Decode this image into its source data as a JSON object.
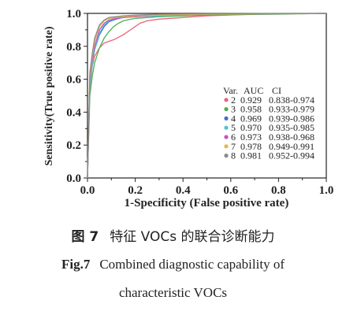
{
  "chart_data": {
    "type": "line",
    "xlabel": "1-Specificity (False positive rate)",
    "ylabel": "Sensitivity(True positive rate)",
    "xlim": [
      0,
      1
    ],
    "ylim": [
      0,
      1
    ],
    "xticks": [
      "0.0",
      "0.2",
      "0.4",
      "0.6",
      "0.8",
      "1.0"
    ],
    "yticks": [
      "0.0",
      "0.2",
      "0.4",
      "0.6",
      "0.8",
      "1.0"
    ],
    "grid": false,
    "legend_position": "bottom-right",
    "legend_header": {
      "var": "Var.",
      "auc": "AUC",
      "ci": "CI"
    },
    "series": [
      {
        "name": "2",
        "auc": "0.929",
        "ci": "0.838-0.974",
        "color": "#e8637a",
        "x": [
          0,
          0.01,
          0.02,
          0.03,
          0.05,
          0.07,
          0.09,
          0.11,
          0.13,
          0.15,
          0.18,
          0.2,
          0.22,
          0.25,
          0.3,
          0.4,
          0.5,
          0.7,
          1.0
        ],
        "y": [
          0,
          0.55,
          0.68,
          0.74,
          0.79,
          0.82,
          0.83,
          0.84,
          0.855,
          0.87,
          0.9,
          0.92,
          0.94,
          0.955,
          0.965,
          0.975,
          0.985,
          0.995,
          1.0
        ]
      },
      {
        "name": "3",
        "auc": "0.958",
        "ci": "0.933-0.979",
        "color": "#4caf50",
        "x": [
          0,
          0.01,
          0.02,
          0.03,
          0.05,
          0.07,
          0.09,
          0.11,
          0.13,
          0.15,
          0.2,
          0.3,
          0.5,
          0.8,
          1.0
        ],
        "y": [
          0,
          0.5,
          0.62,
          0.7,
          0.79,
          0.85,
          0.89,
          0.92,
          0.94,
          0.955,
          0.97,
          0.98,
          0.99,
          0.995,
          1.0
        ]
      },
      {
        "name": "4",
        "auc": "0.969",
        "ci": "0.939-0.986",
        "color": "#3f6fd1",
        "x": [
          0,
          0.01,
          0.02,
          0.03,
          0.05,
          0.07,
          0.09,
          0.12,
          0.15,
          0.2,
          0.3,
          0.5,
          1.0
        ],
        "y": [
          0,
          0.58,
          0.7,
          0.78,
          0.87,
          0.92,
          0.95,
          0.965,
          0.975,
          0.985,
          0.99,
          0.995,
          1.0
        ]
      },
      {
        "name": "5",
        "auc": "0.970",
        "ci": "0.935-0.985",
        "color": "#4ec3d6",
        "x": [
          0,
          0.01,
          0.02,
          0.03,
          0.05,
          0.07,
          0.09,
          0.12,
          0.15,
          0.2,
          0.3,
          0.5,
          1.0
        ],
        "y": [
          0,
          0.56,
          0.69,
          0.78,
          0.88,
          0.93,
          0.955,
          0.97,
          0.975,
          0.98,
          0.985,
          0.995,
          1.0
        ]
      },
      {
        "name": "6",
        "auc": "0.973",
        "ci": "0.938-0.968",
        "color": "#c94fc2",
        "x": [
          0,
          0.01,
          0.02,
          0.03,
          0.05,
          0.07,
          0.09,
          0.12,
          0.15,
          0.2,
          0.3,
          0.5,
          1.0
        ],
        "y": [
          0,
          0.6,
          0.72,
          0.8,
          0.9,
          0.94,
          0.96,
          0.97,
          0.975,
          0.98,
          0.99,
          0.995,
          1.0
        ]
      },
      {
        "name": "7",
        "auc": "0.978",
        "ci": "0.949-0.991",
        "color": "#e6b54a",
        "x": [
          0,
          0.01,
          0.02,
          0.03,
          0.05,
          0.07,
          0.09,
          0.12,
          0.15,
          0.2,
          0.3,
          0.5,
          1.0
        ],
        "y": [
          0,
          0.62,
          0.74,
          0.83,
          0.92,
          0.955,
          0.97,
          0.975,
          0.98,
          0.985,
          0.99,
          0.995,
          1.0
        ]
      },
      {
        "name": "8",
        "auc": "0.981",
        "ci": "0.952-0.994",
        "color": "#8a8a8a",
        "x": [
          0,
          0.01,
          0.02,
          0.03,
          0.05,
          0.07,
          0.09,
          0.12,
          0.15,
          0.2,
          0.3,
          0.5,
          1.0
        ],
        "y": [
          0,
          0.64,
          0.76,
          0.85,
          0.93,
          0.96,
          0.975,
          0.98,
          0.985,
          0.99,
          0.995,
          0.998,
          1.0
        ]
      }
    ]
  },
  "caption": {
    "cn_number": "图 7",
    "cn_text": "特征 VOCs 的联合诊断能力",
    "en_number": "Fig.7",
    "en_line1": "Combined diagnostic capability of",
    "en_line2": "characteristic VOCs"
  }
}
